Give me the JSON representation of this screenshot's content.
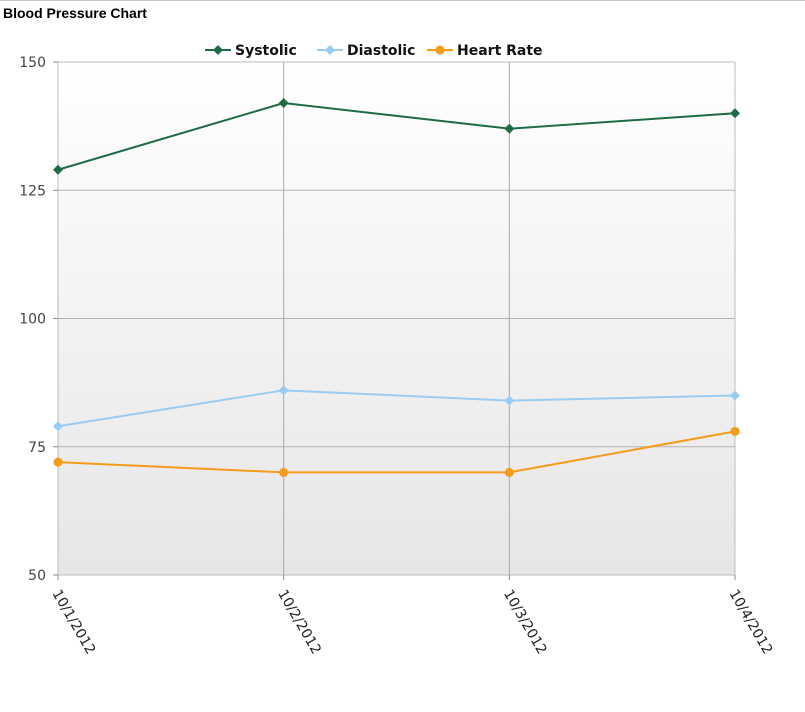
{
  "chart_data": {
    "type": "line",
    "title": "Blood Pressure Chart",
    "categories": [
      "10/1/2012",
      "10/2/2012",
      "10/3/2012",
      "10/4/2012"
    ],
    "ylim": [
      50,
      150
    ],
    "yticks": [
      50,
      75,
      100,
      125,
      150
    ],
    "grid": true,
    "legend": "top-center",
    "series": [
      {
        "name": "Systolic",
        "values": [
          129,
          142,
          137,
          140
        ],
        "color": "#1e6b45",
        "marker": "diamond"
      },
      {
        "name": "Diastolic",
        "values": [
          79,
          86,
          84,
          85
        ],
        "color": "#99ccf2",
        "marker": "diamond"
      },
      {
        "name": "Heart Rate",
        "values": [
          72,
          70,
          70,
          78
        ],
        "color": "#f59b1a",
        "marker": "circle"
      }
    ]
  }
}
